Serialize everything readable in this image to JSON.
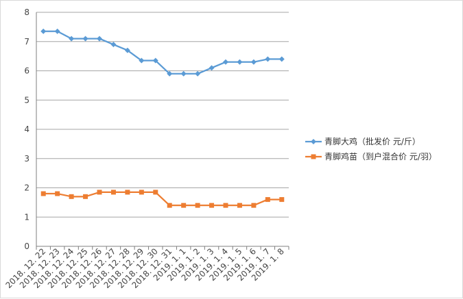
{
  "chart_data": {
    "type": "line",
    "title": "",
    "xlabel": "",
    "ylabel": "",
    "ylim": [
      0,
      8
    ],
    "ystep": 1,
    "grid": true,
    "legend_position": "right",
    "categories": [
      "2018. 12. 22",
      "2018. 12. 23",
      "2018. 12. 24",
      "2018. 12. 25",
      "2018. 12. 26",
      "2018. 12. 27",
      "2018. 12. 28",
      "2018. 12. 29",
      "2018. 12. 30",
      "2018. 12. 31",
      "2019. 1. 1",
      "2019. 1. 2",
      "2019. 1. 3",
      "2019. 1. 4",
      "2019. 1. 5",
      "2019. 1. 6",
      "2019. 1. 7",
      "2019. 1. 8"
    ],
    "yticks": [
      "0",
      "1",
      "2",
      "3",
      "4",
      "5",
      "6",
      "7",
      "8"
    ],
    "series": [
      {
        "name": "青脚大鸡（批发价 元/斤）",
        "color": "#5B9BD5",
        "marker": "diamond",
        "values": [
          7.35,
          7.35,
          7.1,
          7.1,
          7.1,
          6.9,
          6.7,
          6.35,
          6.35,
          5.9,
          5.9,
          5.9,
          6.1,
          6.3,
          6.3,
          6.3,
          6.4,
          6.4
        ]
      },
      {
        "name": "青脚鸡苗（到户混合价 元/羽）",
        "color": "#ED7D31",
        "marker": "square",
        "values": [
          1.8,
          1.8,
          1.7,
          1.7,
          1.85,
          1.85,
          1.85,
          1.85,
          1.85,
          1.4,
          1.4,
          1.4,
          1.4,
          1.4,
          1.4,
          1.4,
          1.6,
          1.6
        ]
      }
    ]
  }
}
